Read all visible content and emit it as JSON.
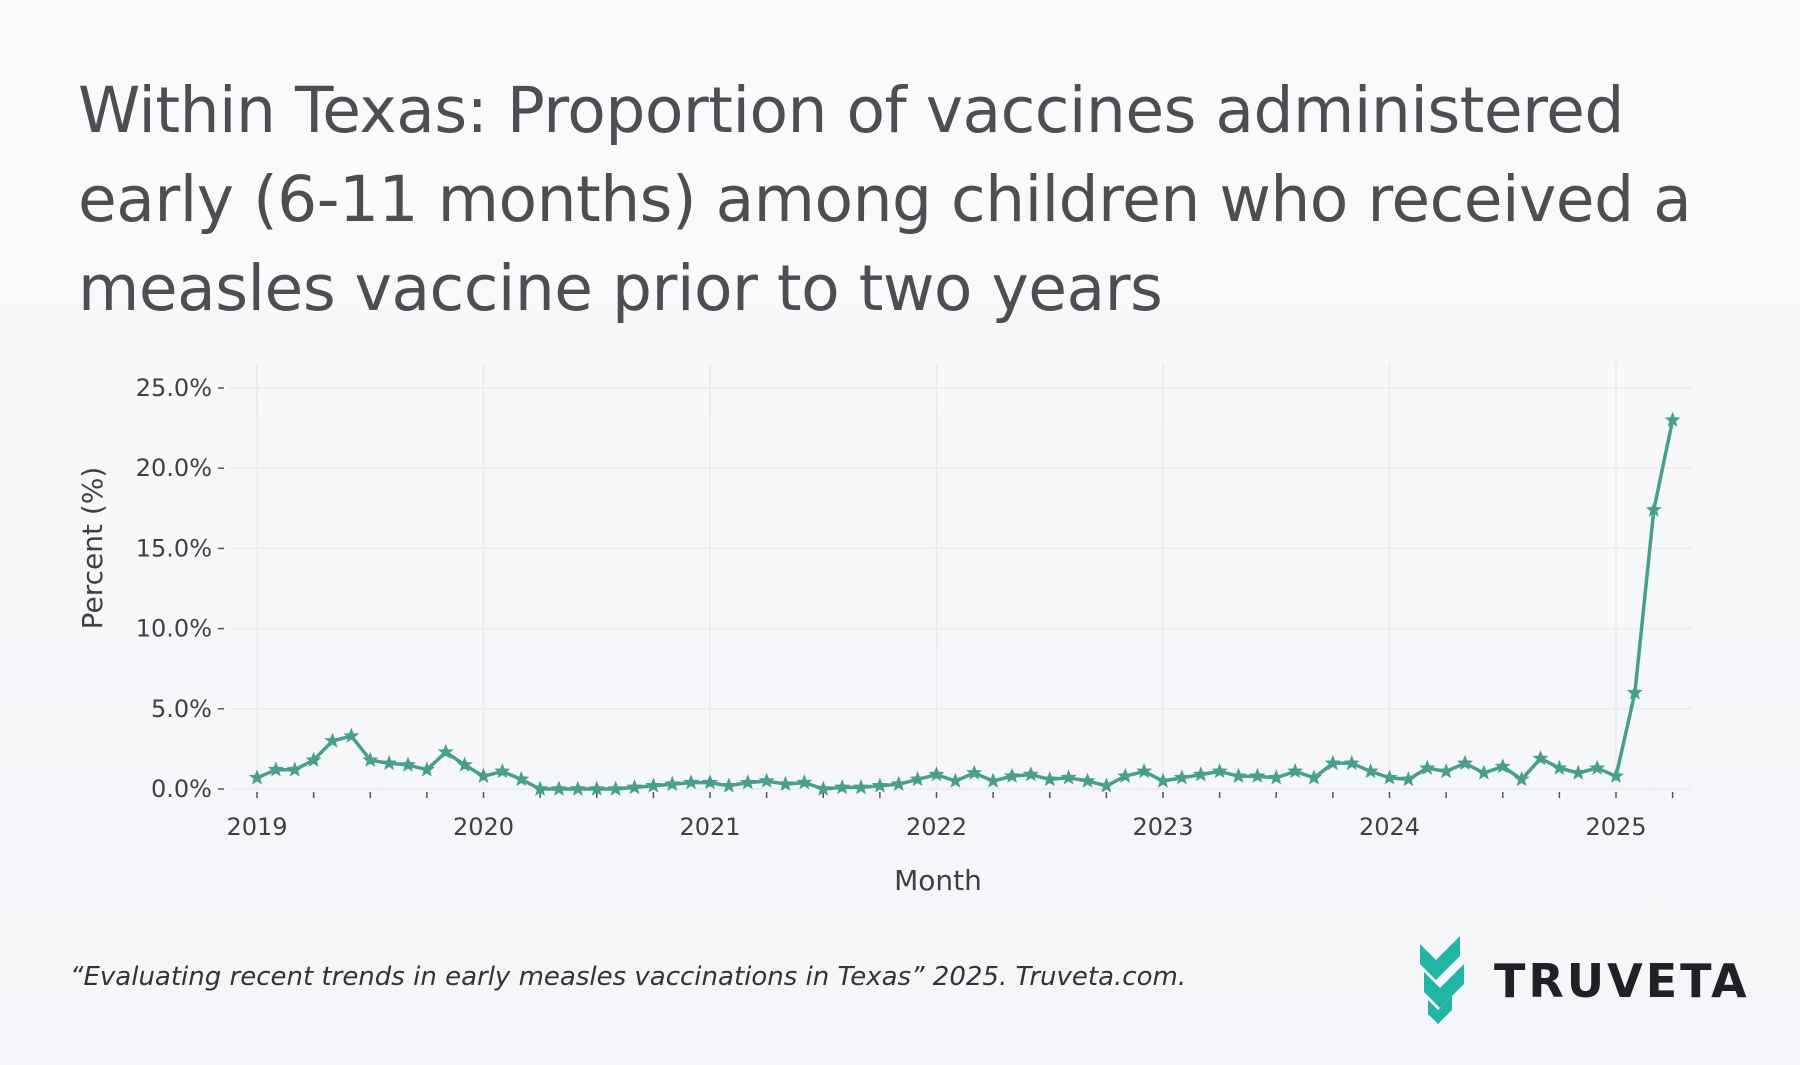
{
  "page": {
    "title": "Within Texas: Proportion of vaccines administered early (6-11 months) among children who received a measles vaccine prior to two years",
    "citation": "“Evaluating recent trends in early measles vaccinations in Texas” 2025. Truveta.com.",
    "logo_text": "TRUVETA",
    "logo_icon": "truveta-chevron-logo-icon"
  },
  "colors": {
    "series": "#4a9e8d",
    "grid": "#ebebee",
    "text": "#4d4d52",
    "logo_teal": "#22b4a5"
  },
  "chart_data": {
    "type": "line",
    "title": "",
    "xlabel": "Month",
    "ylabel": "Percent (%)",
    "ylim": [
      0,
      25
    ],
    "yticks": [
      {
        "value": 0,
        "label": "0.0%"
      },
      {
        "value": 5,
        "label": "5.0%"
      },
      {
        "value": 10,
        "label": "10.0%"
      },
      {
        "value": 15,
        "label": "15.0%"
      },
      {
        "value": 20,
        "label": "20.0%"
      },
      {
        "value": 25,
        "label": "25.0%"
      }
    ],
    "xticks": [
      "2019",
      "2020",
      "2021",
      "2022",
      "2023",
      "2024",
      "2025"
    ],
    "grid": true,
    "legend": "none",
    "marker": "star",
    "series": [
      {
        "x": [
          "2019-01",
          "2019-02",
          "2019-03",
          "2019-04",
          "2019-05",
          "2019-06",
          "2019-07",
          "2019-08",
          "2019-09",
          "2019-10",
          "2019-11",
          "2019-12",
          "2020-01",
          "2020-02",
          "2020-03",
          "2020-04",
          "2020-05",
          "2020-06",
          "2020-07",
          "2020-08",
          "2020-09",
          "2020-10",
          "2020-11",
          "2020-12",
          "2021-01",
          "2021-02",
          "2021-03",
          "2021-04",
          "2021-05",
          "2021-06",
          "2021-07",
          "2021-08",
          "2021-09",
          "2021-10",
          "2021-11",
          "2021-12",
          "2022-01",
          "2022-02",
          "2022-03",
          "2022-04",
          "2022-05",
          "2022-06",
          "2022-07",
          "2022-08",
          "2022-09",
          "2022-10",
          "2022-11",
          "2022-12",
          "2023-01",
          "2023-02",
          "2023-03",
          "2023-04",
          "2023-05",
          "2023-06",
          "2023-07",
          "2023-08",
          "2023-09",
          "2023-10",
          "2023-11",
          "2023-12",
          "2024-01",
          "2024-02",
          "2024-03",
          "2024-04",
          "2024-05",
          "2024-06",
          "2024-07",
          "2024-08",
          "2024-09",
          "2024-10",
          "2024-11",
          "2024-12",
          "2025-01",
          "2025-02",
          "2025-03",
          "2025-04"
        ],
        "values": [
          0.7,
          1.2,
          1.2,
          1.8,
          3.0,
          3.3,
          1.8,
          1.6,
          1.5,
          1.2,
          2.3,
          1.5,
          0.8,
          1.1,
          0.6,
          0.0,
          0.0,
          0.0,
          0.0,
          0.0,
          0.1,
          0.2,
          0.3,
          0.4,
          0.4,
          0.2,
          0.4,
          0.5,
          0.3,
          0.4,
          0.0,
          0.1,
          0.1,
          0.2,
          0.3,
          0.6,
          0.9,
          0.5,
          1.0,
          0.5,
          0.8,
          0.9,
          0.6,
          0.7,
          0.5,
          0.2,
          0.8,
          1.1,
          0.5,
          0.7,
          0.9,
          1.1,
          0.8,
          0.8,
          0.7,
          1.1,
          0.7,
          1.6,
          1.6,
          1.1,
          0.7,
          0.6,
          1.3,
          1.1,
          1.6,
          1.0,
          1.4,
          0.6,
          1.9,
          1.3,
          1.0,
          1.3,
          0.8,
          6.0,
          17.4,
          23.0
        ]
      }
    ]
  }
}
